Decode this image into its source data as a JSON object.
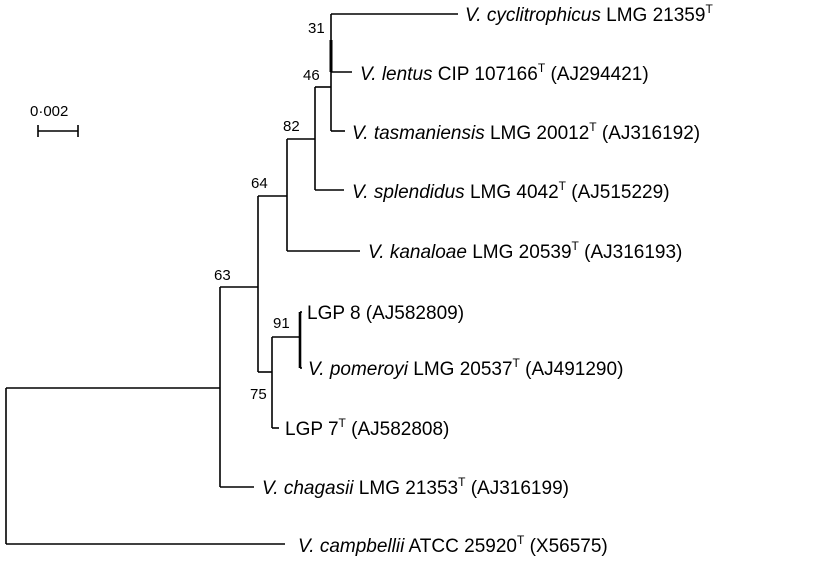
{
  "scale_bar": {
    "label": "0·002"
  },
  "leaves": [
    {
      "id": "cyc",
      "species": "V. cyclitrophicus",
      "rest": " LMG 21359",
      "sup": "T",
      "acc": ""
    },
    {
      "id": "len",
      "species": "V. lentus",
      "rest": " CIP 107166",
      "sup": "T",
      "acc": " (AJ294421)"
    },
    {
      "id": "tas",
      "species": "V. tasmaniensis",
      "rest": " LMG 20012",
      "sup": "T",
      "acc": " (AJ316192)"
    },
    {
      "id": "spl",
      "species": "V. splendidus",
      "rest": " LMG 4042",
      "sup": "T",
      "acc": " (AJ515229)"
    },
    {
      "id": "kan",
      "species": "V. kanaloae",
      "rest": " LMG 20539",
      "sup": "T",
      "acc": " (AJ316193)"
    },
    {
      "id": "lgp8",
      "species": "",
      "rest": "LGP 8 (AJ582809)",
      "sup": "",
      "acc": ""
    },
    {
      "id": "pom",
      "species": "V. pomeroyi",
      "rest": " LMG 20537",
      "sup": "T",
      "acc": " (AJ491290)"
    },
    {
      "id": "lgp7",
      "species": "",
      "rest": "LGP 7",
      "sup": "T",
      "acc": " (AJ582808)"
    },
    {
      "id": "cha",
      "species": "V. chagasii",
      "rest": " LMG 21353",
      "sup": "T",
      "acc": " (AJ316199)"
    },
    {
      "id": "cam",
      "species": "V. campbellii",
      "rest": " ATCC 25920",
      "sup": "T",
      "acc": " (X56575)"
    }
  ],
  "bootstrap": [
    {
      "id": "b31",
      "value": "31"
    },
    {
      "id": "b46",
      "value": "46"
    },
    {
      "id": "b82",
      "value": "82"
    },
    {
      "id": "b64",
      "value": "64"
    },
    {
      "id": "b63",
      "value": "63"
    },
    {
      "id": "b91",
      "value": "91"
    },
    {
      "id": "b75",
      "value": "75"
    }
  ]
}
